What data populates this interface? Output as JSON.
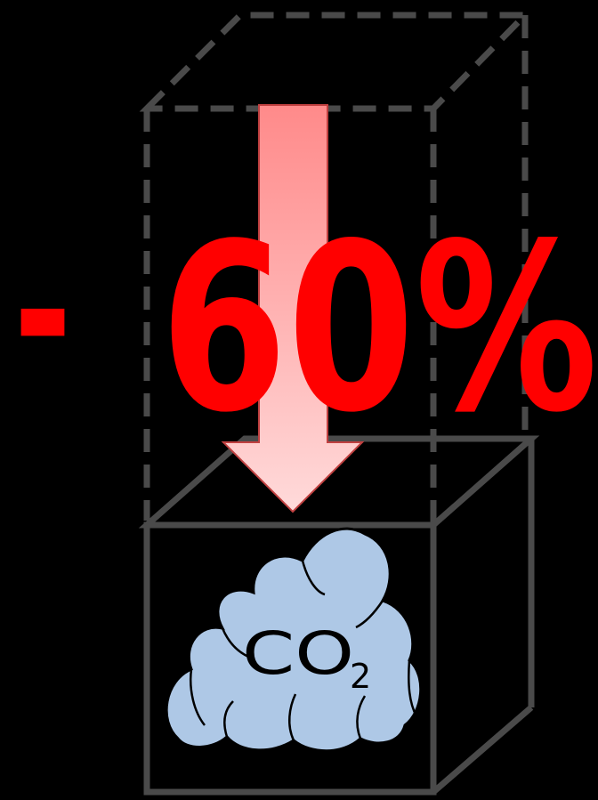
{
  "reduction": {
    "sign": "-",
    "value": "60%",
    "color": "#ff0000"
  },
  "co2_label": {
    "main": "CO",
    "subscript": "2"
  },
  "colors": {
    "background": "#000000",
    "box_lines": "#4a4a4a",
    "cloud_fill": "#aec8e6",
    "cloud_outline": "#000000",
    "arrow_top": "#ff8a8a",
    "arrow_bottom": "#ffd8d8",
    "arrow_outline": "#c04040"
  },
  "icons": {
    "cloud": "co2-cloud-icon",
    "arrow": "arrow-down-icon"
  }
}
